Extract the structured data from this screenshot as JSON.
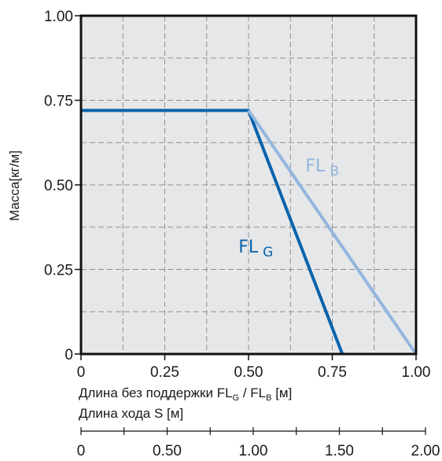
{
  "chart_data": {
    "type": "line",
    "ylabel": "Масса[кг/м]",
    "xlabel_main": "Длина без поддержки FL",
    "xlabel_sub_g": "G",
    "xlabel_sep": " / FL",
    "xlabel_sub_b": "B",
    "xlabel_unit": " [м]",
    "xlabel2": "Длина хода S  [м]",
    "xlim": [
      0,
      1.0
    ],
    "ylim": [
      0,
      1.0
    ],
    "grid": true,
    "background": "#e6e7e8",
    "x_ticks": [
      {
        "value": 0,
        "label": "0"
      },
      {
        "value": 0.25,
        "label": "0.25"
      },
      {
        "value": 0.5,
        "label": "0.50"
      },
      {
        "value": 0.75,
        "label": "0.75"
      },
      {
        "value": 1.0,
        "label": "1.00"
      }
    ],
    "y_ticks": [
      {
        "value": 0,
        "label": "0"
      },
      {
        "value": 0.25,
        "label": "0.25"
      },
      {
        "value": 0.5,
        "label": "0.50"
      },
      {
        "value": 0.75,
        "label": "0.75"
      },
      {
        "value": 1.0,
        "label": "1.00"
      }
    ],
    "x2_ticks": [
      {
        "value": 0,
        "label": "0"
      },
      {
        "value": 0.5,
        "label": "0.50"
      },
      {
        "value": 1.0,
        "label": "1.00"
      },
      {
        "value": 1.5,
        "label": "1.50"
      },
      {
        "value": 2.0,
        "label": "2.00"
      }
    ],
    "x2lim": [
      0,
      2.0
    ],
    "series": [
      {
        "name": "FL",
        "sub": "G",
        "color": "#0a63ad",
        "x": [
          0,
          0.5,
          0.78
        ],
        "y": [
          0.72,
          0.72,
          0
        ]
      },
      {
        "name": "FL",
        "sub": "B",
        "color": "#93b6de",
        "x": [
          0.5,
          1.0
        ],
        "y": [
          0.72,
          0
        ]
      }
    ]
  }
}
